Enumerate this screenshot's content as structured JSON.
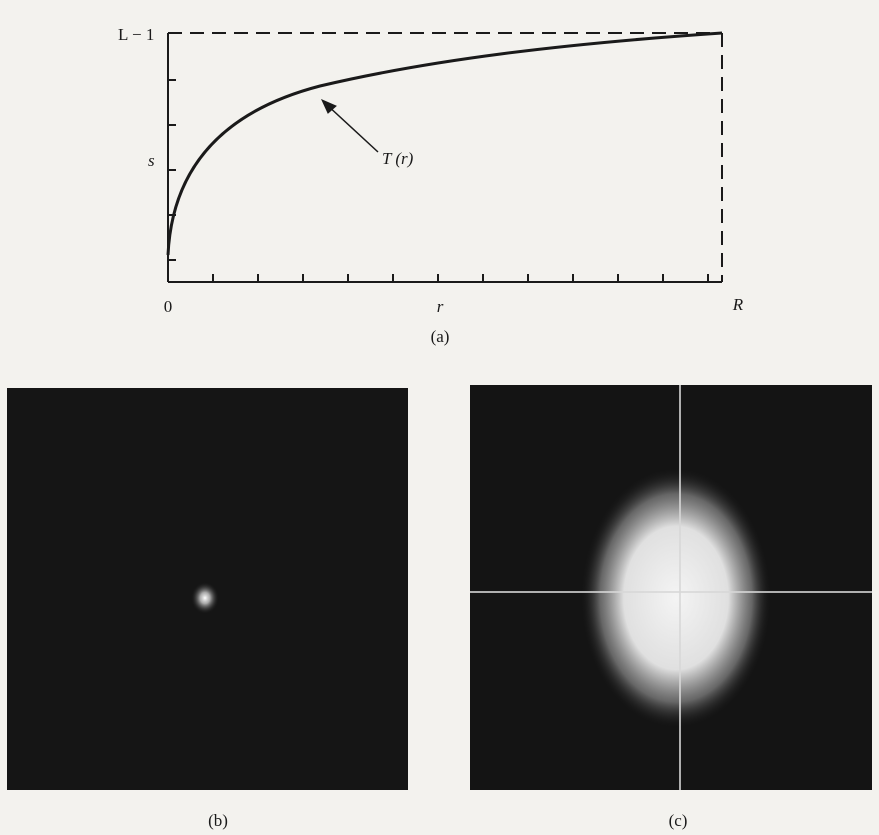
{
  "figure": {
    "panel_a": {
      "y_top_label": "L − 1",
      "y_axis_label": "s",
      "x_origin_label": "0",
      "x_axis_label": "r",
      "x_end_label": "R",
      "curve_label": "T (r)",
      "caption": "(a)"
    },
    "panel_b": {
      "caption": "(b)"
    },
    "panel_c": {
      "caption": "(c)"
    }
  }
}
